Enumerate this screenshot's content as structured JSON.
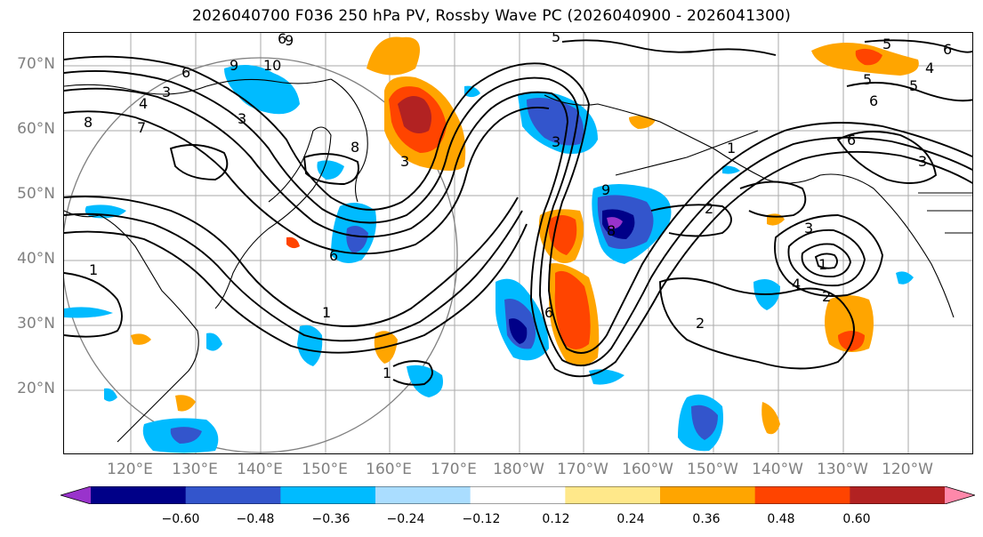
{
  "title": "2026040700 F036 250 hPa PV, Rossby Wave PC (2026040900 - 2026041300)",
  "lat_labels": [
    "70°N",
    "60°N",
    "50°N",
    "40°N",
    "30°N",
    "20°N"
  ],
  "lon_labels": [
    "120°E",
    "130°E",
    "140°E",
    "150°E",
    "160°E",
    "170°E",
    "180°W",
    "170°W",
    "160°W",
    "150°W",
    "140°W",
    "130°W",
    "120°W"
  ],
  "colorbar": {
    "ticks": [
      "−0.60",
      "−0.48",
      "−0.36",
      "−0.24",
      "−0.12",
      "0.12",
      "0.24",
      "0.36",
      "0.48",
      "0.60"
    ],
    "colors": [
      "#9933cc",
      "#000088",
      "#3355cc",
      "#00bbff",
      "#aaddff",
      "#ffffff",
      "#ffe88a",
      "#ffa500",
      "#ff4400",
      "#b22222",
      "#ff88aa"
    ]
  },
  "contour_labels": [
    "9",
    "10",
    "6",
    "3",
    "4",
    "8",
    "7",
    "3",
    "8",
    "3",
    "6",
    "1",
    "6",
    "1",
    "6",
    "9",
    "8",
    "3",
    "9",
    "1",
    "2",
    "2",
    "3",
    "4",
    "1",
    "2",
    "5",
    "5",
    "6",
    "6",
    "5",
    "4",
    "5",
    "6",
    "1",
    "3"
  ],
  "colors": {
    "positive_core": "#b22222",
    "negative_core": "#000088",
    "contour": "#000000",
    "circle": "#808080"
  }
}
